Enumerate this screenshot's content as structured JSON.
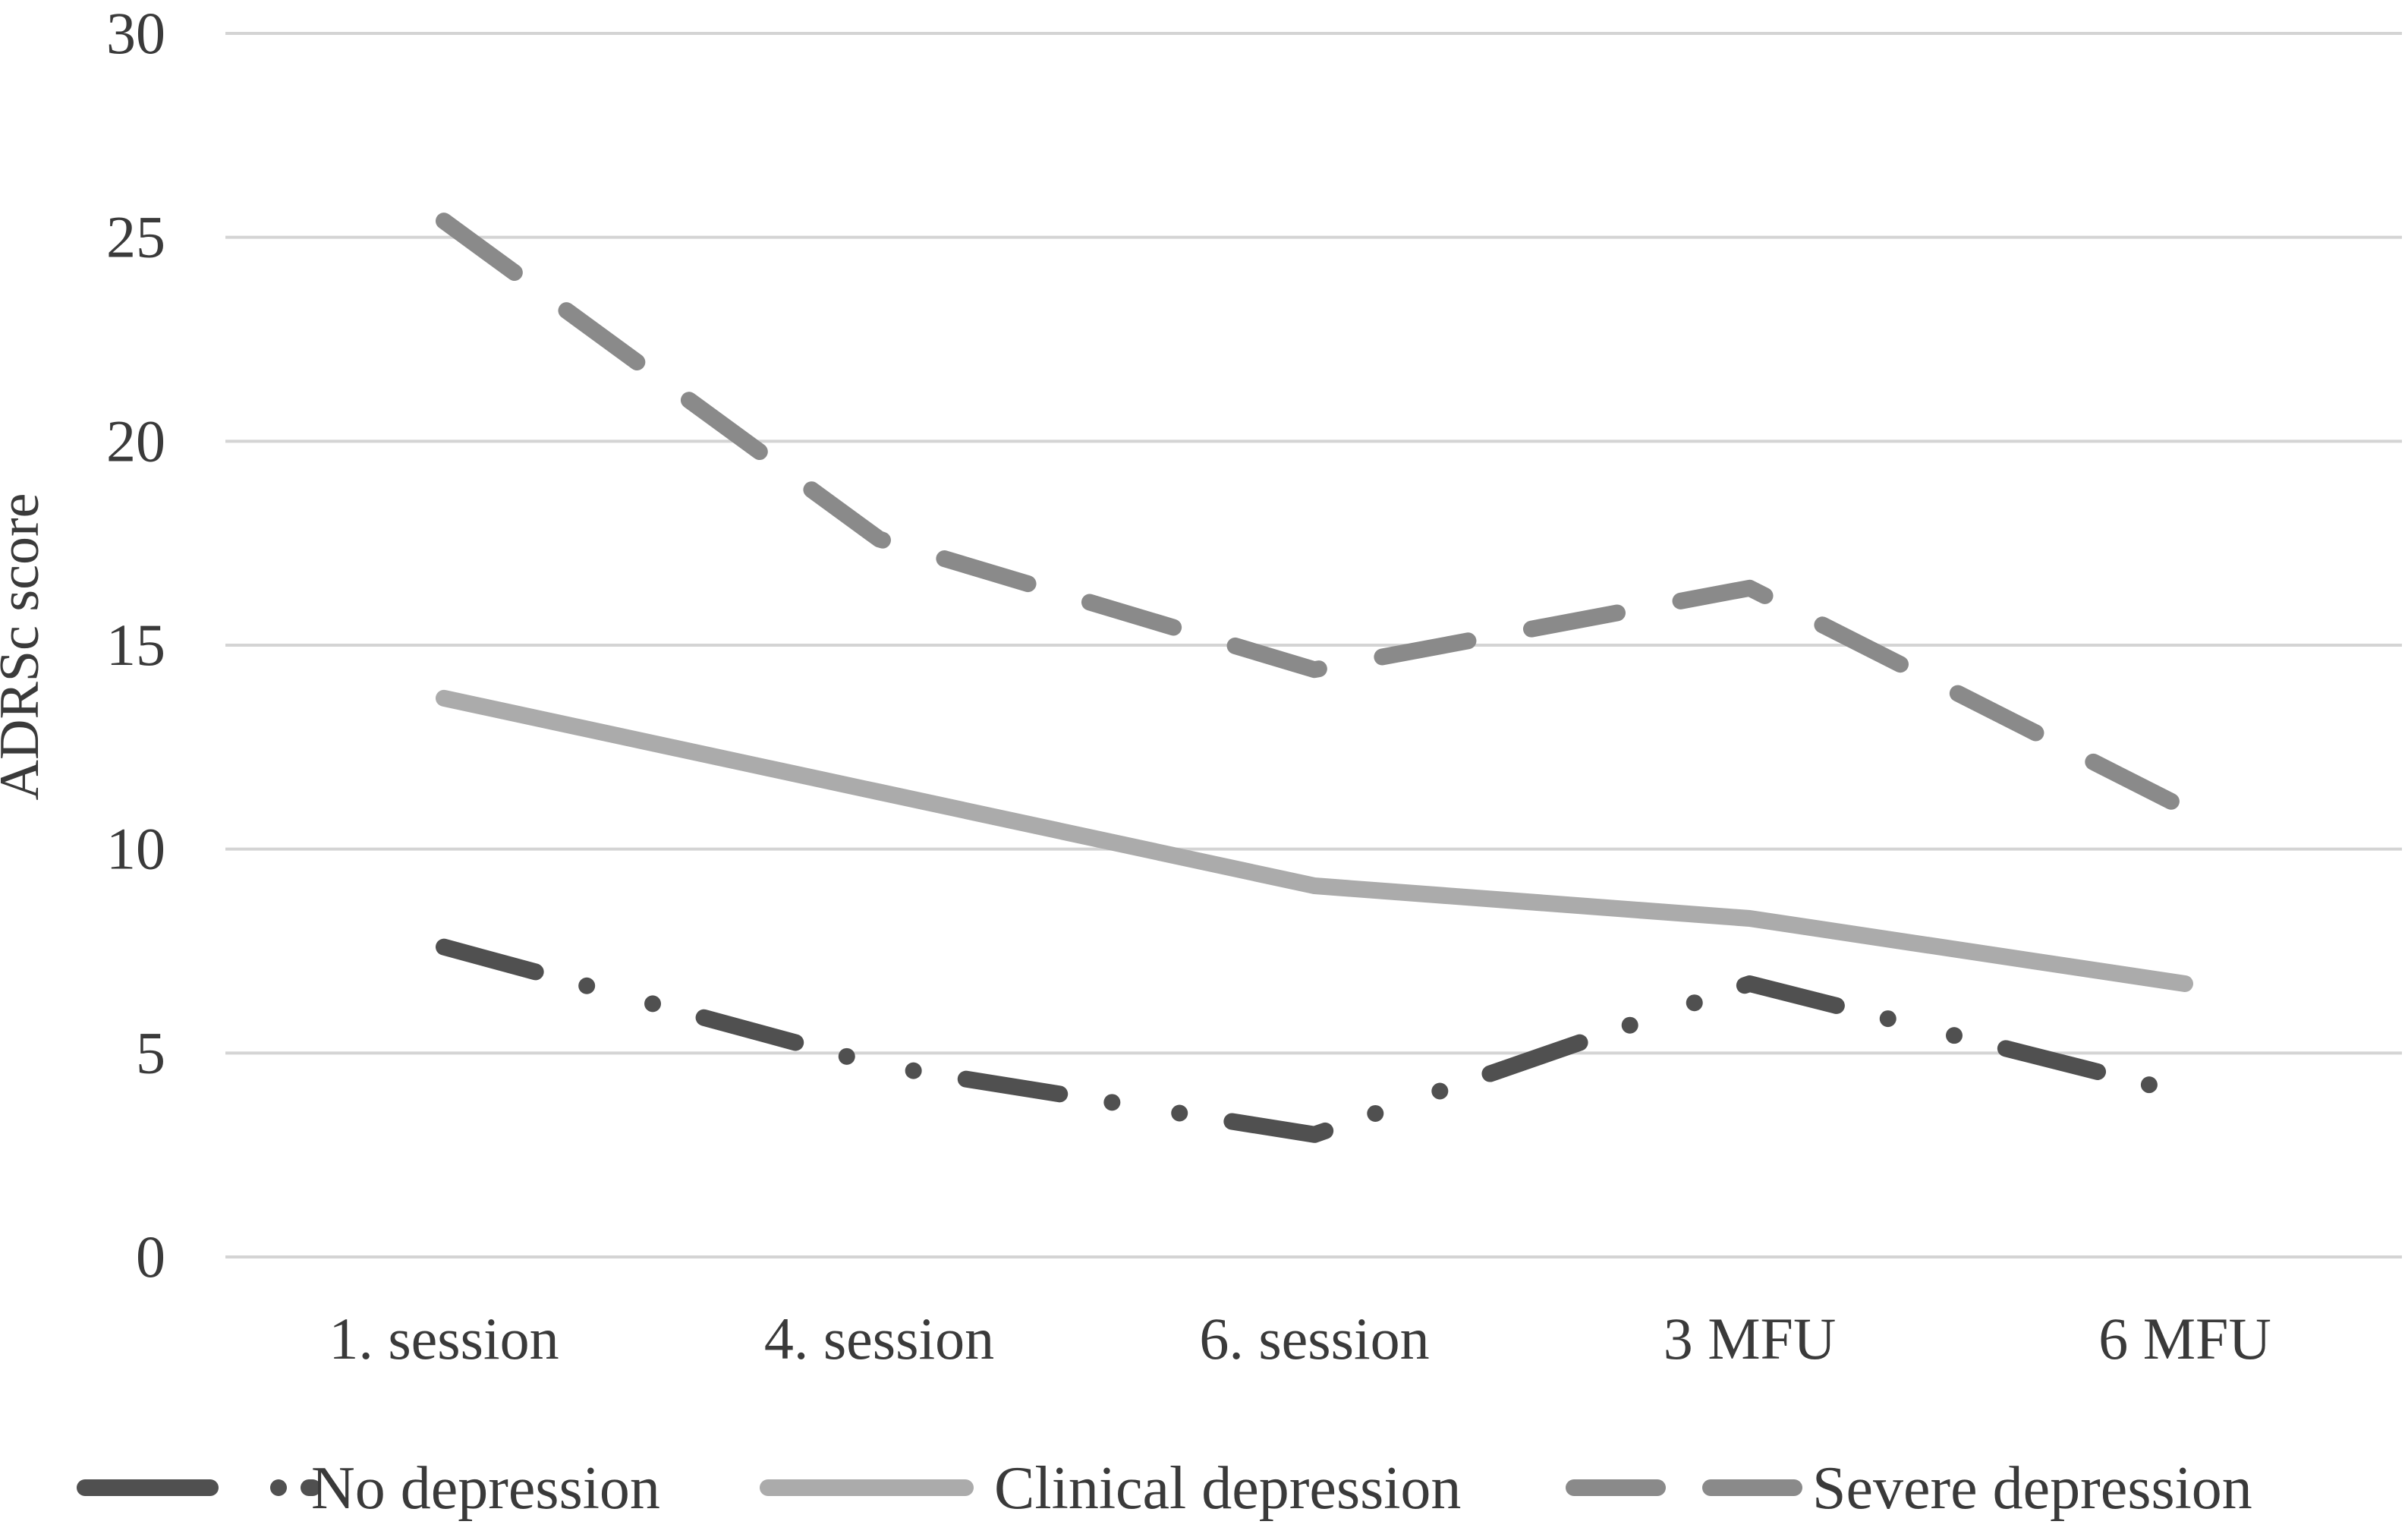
{
  "chart_data": {
    "type": "line",
    "title": "",
    "xlabel": "",
    "ylabel": "ADRSc score",
    "ylim": [
      0,
      30
    ],
    "yticks": [
      0,
      5,
      10,
      15,
      20,
      25,
      30
    ],
    "grid": true,
    "legend_position": "bottom",
    "categories": [
      "1. session",
      "4. session",
      "6. session",
      "3 MFU",
      "6 MFU"
    ],
    "series": [
      {
        "name": "No depression",
        "values": [
          7.6,
          4.7,
          3.0,
          6.7,
          4.0
        ],
        "color": "#505050",
        "style": "dash-dot-dot"
      },
      {
        "name": "Clinical depression",
        "values": [
          13.7,
          11.4,
          9.1,
          8.3,
          6.7
        ],
        "color": "#ababab",
        "style": "solid"
      },
      {
        "name": "Severe depression",
        "values": [
          25.4,
          17.6,
          14.4,
          16.4,
          11.0
        ],
        "color": "#8a8a8a",
        "style": "dash"
      }
    ]
  }
}
